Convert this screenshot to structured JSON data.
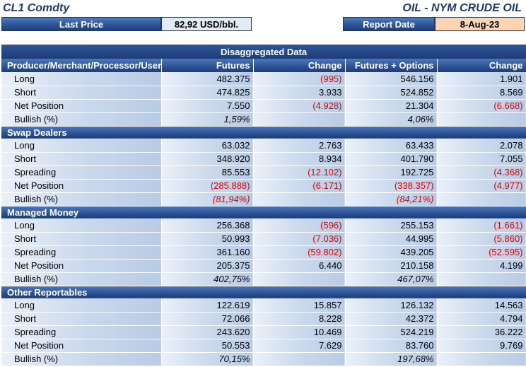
{
  "header": {
    "ticker": "CL1 Comdty",
    "instrument": "OIL - NYM CRUDE OIL",
    "last_price_label": "Last Price",
    "last_price_value": "82,92 USD/bbl.",
    "report_date_label": "Report Date",
    "report_date_value": "8-Aug-23"
  },
  "table": {
    "banner": "Disaggregated Data",
    "columns": [
      "Producer/Merchant/Processor/User",
      "Futures",
      "Change",
      "Futures + Options",
      "Change"
    ],
    "sections": [
      {
        "title": "",
        "rows": [
          {
            "label": "Long",
            "fut": "482.375",
            "chg1": "(995)",
            "fo": "546.156",
            "chg2": "1.901"
          },
          {
            "label": "Short",
            "fut": "474.825",
            "chg1": "3.933",
            "fo": "524.852",
            "chg2": "8.569"
          },
          {
            "label": "Net Position",
            "fut": "7.550",
            "chg1": "(4.928)",
            "fo": "21.304",
            "chg2": "(6.668)"
          },
          {
            "label": "Bullish (%)",
            "fut": "1,59%",
            "chg1": "",
            "fo": "4,06%",
            "chg2": ""
          }
        ]
      },
      {
        "title": "Swap Dealers",
        "rows": [
          {
            "label": "Long",
            "fut": "63.032",
            "chg1": "2.763",
            "fo": "63.433",
            "chg2": "2.078"
          },
          {
            "label": "Short",
            "fut": "348.920",
            "chg1": "8.934",
            "fo": "401.790",
            "chg2": "7.055"
          },
          {
            "label": "Spreading",
            "fut": "85.553",
            "chg1": "(12.102)",
            "fo": "192.725",
            "chg2": "(4.368)"
          },
          {
            "label": "Net Position",
            "fut": "(285.888)",
            "chg1": "(6.171)",
            "fo": "(338.357)",
            "chg2": "(4.977)"
          },
          {
            "label": "Bullish (%)",
            "fut": "(81,94%)",
            "chg1": "",
            "fo": "(84,21%)",
            "chg2": ""
          }
        ]
      },
      {
        "title": "Managed Money",
        "rows": [
          {
            "label": "Long",
            "fut": "256.368",
            "chg1": "(596)",
            "fo": "255.153",
            "chg2": "(1.661)"
          },
          {
            "label": "Short",
            "fut": "50.993",
            "chg1": "(7.036)",
            "fo": "44.995",
            "chg2": "(5.860)"
          },
          {
            "label": "Spreading",
            "fut": "361.160",
            "chg1": "(59.802)",
            "fo": "439.205",
            "chg2": "(52.595)"
          },
          {
            "label": "Net Position",
            "fut": "205.375",
            "chg1": "6.440",
            "fo": "210.158",
            "chg2": "4.199"
          },
          {
            "label": "Bullish (%)",
            "fut": "402,75%",
            "chg1": "",
            "fo": "467,07%",
            "chg2": ""
          }
        ]
      },
      {
        "title": "Other Reportables",
        "rows": [
          {
            "label": "Long",
            "fut": "122.619",
            "chg1": "15.857",
            "fo": "126.132",
            "chg2": "14.563"
          },
          {
            "label": "Short",
            "fut": "72.066",
            "chg1": "8.228",
            "fo": "42.372",
            "chg2": "4.794"
          },
          {
            "label": "Spreading",
            "fut": "243.620",
            "chg1": "10.469",
            "fo": "524.219",
            "chg2": "36.222"
          },
          {
            "label": "Net Position",
            "fut": "50.553",
            "chg1": "7.629",
            "fo": "83.760",
            "chg2": "9.769"
          },
          {
            "label": "Bullish (%)",
            "fut": "70,15%",
            "chg1": "",
            "fo": "197,68%",
            "chg2": ""
          }
        ]
      }
    ]
  }
}
